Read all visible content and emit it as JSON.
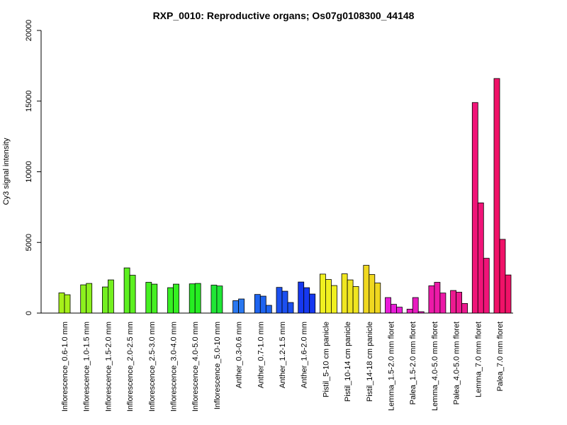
{
  "chart_data": {
    "type": "bar",
    "title": "RXP_0010: Reproductive organs; Os07g0108300_44148",
    "ylabel": "Cy3 signal intensity",
    "xlabel": "",
    "ylim": [
      0,
      20000
    ],
    "yticks": [
      "0",
      "5000",
      "10000",
      "15000",
      "20000"
    ],
    "grid": false,
    "legend": "none",
    "groups": [
      {
        "label": "Inflorescence_0.6-1.0 mm",
        "color": "#A6F01A",
        "values": [
          1430,
          1300
        ]
      },
      {
        "label": "Inflorescence_1.0-1.5 mm",
        "color": "#8CF01E",
        "values": [
          2000,
          2100
        ]
      },
      {
        "label": "Inflorescence_1.5-2.0 mm",
        "color": "#74F020",
        "values": [
          1850,
          2350
        ]
      },
      {
        "label": "Inflorescence_2.0-2.5 mm",
        "color": "#5CF020",
        "values": [
          3200,
          2680
        ]
      },
      {
        "label": "Inflorescence_2.5-3.0 mm",
        "color": "#46F022",
        "values": [
          2180,
          2050
        ]
      },
      {
        "label": "Inflorescence_3.0-4.0 mm",
        "color": "#36F022",
        "values": [
          1800,
          2050
        ]
      },
      {
        "label": "Inflorescence_4.0-5.0 mm",
        "color": "#26EE22",
        "values": [
          2070,
          2100
        ]
      },
      {
        "label": "Inflorescence_5.0-10 mm",
        "color": "#20E636",
        "values": [
          1980,
          1920
        ]
      },
      {
        "label": "Anther_0.3-0.6 mm",
        "color": "#2A78F0",
        "values": [
          880,
          1000
        ]
      },
      {
        "label": "Anther_0.7-1.0 mm",
        "color": "#1E64F0",
        "values": [
          1320,
          1200,
          550
        ]
      },
      {
        "label": "Anther_1.2-1.5 mm",
        "color": "#1C50F0",
        "values": [
          1820,
          1550,
          750
        ]
      },
      {
        "label": "Anther_1.6-2.0 mm",
        "color": "#1638F0",
        "values": [
          2200,
          1800,
          1350
        ]
      },
      {
        "label": "Pistil_5-10 cm panicle",
        "color": "#F0F020",
        "values": [
          2760,
          2380,
          1950
        ]
      },
      {
        "label": "Pistil_10-14 cm panicle",
        "color": "#F0E620",
        "values": [
          2780,
          2350,
          1880
        ]
      },
      {
        "label": "Pistil_14-18 cm panicle",
        "color": "#F0D820",
        "values": [
          3380,
          2730,
          2130
        ]
      },
      {
        "label": "Lemma_1.5-2.0 mm floret",
        "color": "#E81CD8",
        "values": [
          1100,
          620,
          420
        ]
      },
      {
        "label": "Palea_1.5-2.0 mm floret",
        "color": "#E81CC0",
        "values": [
          280,
          1100,
          100
        ]
      },
      {
        "label": "Lemma_4.0-5.0 mm floret",
        "color": "#EC1AA8",
        "values": [
          1930,
          2180,
          1420
        ]
      },
      {
        "label": "Palea_4.0-5.0 mm floret",
        "color": "#EC1A90",
        "values": [
          1600,
          1480,
          680
        ]
      },
      {
        "label": "Lemma_7.0 mm floret",
        "color": "#F01478",
        "values": [
          14900,
          7800,
          3880
        ]
      },
      {
        "label": "Palea_7.0 mm floret",
        "color": "#F01268",
        "values": [
          16600,
          5220,
          2700
        ]
      }
    ]
  }
}
